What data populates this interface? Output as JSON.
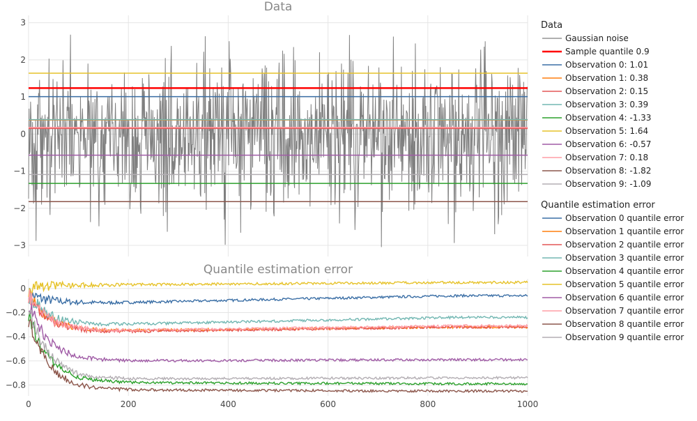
{
  "chart_data": [
    {
      "type": "line",
      "title": "Data",
      "xlim": [
        0,
        1000
      ],
      "ylim": [
        -3.3,
        3.2
      ],
      "yticks": [
        3,
        2,
        1,
        0,
        -1,
        -2,
        -3
      ],
      "ytick_labels": [
        "3",
        "2",
        "1",
        "0",
        "−1",
        "−2",
        "−3"
      ],
      "grid": true,
      "noise": {
        "name": "Gaussian noise",
        "color": "#7f7f7f",
        "count": 1000,
        "note": "Noise values rendered procedurally; amplitude approx within [-3.1, 2.85]"
      },
      "hlines": [
        {
          "name": "Sample quantile 0.9",
          "value": 1.24,
          "color": "#ff0000",
          "width": 2.5
        },
        {
          "name": "Observation 0: 1.01",
          "value": 1.01,
          "color": "#3a6ea5"
        },
        {
          "name": "Observation 1: 0.38",
          "value": 0.38,
          "color": "#ff7f0e"
        },
        {
          "name": "Observation 2: 0.15",
          "value": 0.15,
          "color": "#e45756"
        },
        {
          "name": "Observation 3: 0.39",
          "value": 0.39,
          "color": "#72b7b2"
        },
        {
          "name": "Observation 4: -1.33",
          "value": -1.33,
          "color": "#2ca02c"
        },
        {
          "name": "Observation 5: 1.64",
          "value": 1.64,
          "color": "#e6c229"
        },
        {
          "name": "Observation 6: -0.57",
          "value": -0.57,
          "color": "#a05ca6"
        },
        {
          "name": "Observation 7: 0.18",
          "value": 0.18,
          "color": "#ff9da6"
        },
        {
          "name": "Observation 8: -1.82",
          "value": -1.82,
          "color": "#8c564b"
        },
        {
          "name": "Observation 9: -1.09",
          "value": -1.09,
          "color": "#b3aeb3"
        }
      ]
    },
    {
      "type": "line",
      "title": "Quantile estimation error",
      "xlim": [
        0,
        1000
      ],
      "ylim": [
        -0.89,
        0.08
      ],
      "xticks": [
        0,
        200,
        400,
        600,
        800,
        1000
      ],
      "xtick_labels": [
        "0",
        "200",
        "400",
        "600",
        "800",
        "1000"
      ],
      "yticks": [
        0,
        -0.2,
        -0.4,
        -0.6,
        -0.8
      ],
      "ytick_labels": [
        "0",
        "−0.2",
        "−0.4",
        "−0.6",
        "−0.8"
      ],
      "grid": true,
      "series": [
        {
          "name": "Observation 0 quantile error",
          "color": "#3a6ea5",
          "start": -0.05,
          "mid": -0.12,
          "final": -0.06
        },
        {
          "name": "Observation 1 quantile error",
          "color": "#ff7f0e",
          "start": -0.05,
          "mid": -0.35,
          "final": -0.32
        },
        {
          "name": "Observation 2 quantile error",
          "color": "#e45756",
          "start": -0.05,
          "mid": -0.36,
          "final": -0.32
        },
        {
          "name": "Observation 3 quantile error",
          "color": "#72b7b2",
          "start": -0.05,
          "mid": -0.3,
          "final": -0.24
        },
        {
          "name": "Observation 4 quantile error",
          "color": "#2ca02c",
          "start": -0.2,
          "mid": -0.78,
          "final": -0.79
        },
        {
          "name": "Observation 5 quantile error",
          "color": "#e6c229",
          "start": 0.0,
          "mid": 0.03,
          "final": 0.05
        },
        {
          "name": "Observation 6 quantile error",
          "color": "#a05ca6",
          "start": -0.12,
          "mid": -0.6,
          "final": -0.59
        },
        {
          "name": "Observation 7 quantile error",
          "color": "#ff9da6",
          "start": -0.05,
          "mid": -0.35,
          "final": -0.31
        },
        {
          "name": "Observation 8 quantile error",
          "color": "#8c564b",
          "start": -0.25,
          "mid": -0.84,
          "final": -0.85
        },
        {
          "name": "Observation 9 quantile error",
          "color": "#b3aeb3",
          "start": -0.15,
          "mid": -0.75,
          "final": -0.74
        }
      ]
    }
  ],
  "legend": {
    "group1_title": "Data",
    "group2_title": "Quantile estimation error"
  }
}
